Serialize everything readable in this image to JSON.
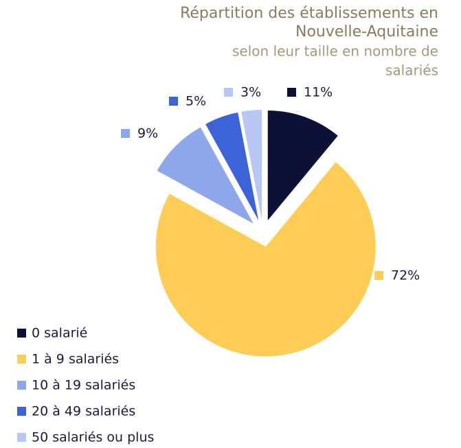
{
  "chart_data": {
    "type": "pie",
    "title": [
      "Répartition des établissements en",
      "Nouvelle-Aquitaine"
    ],
    "subtitle": [
      "selon leur taille en nombre de",
      "salariés"
    ],
    "categories": [
      "0 salarié",
      "1 à 9 salariés",
      "10 à 19 salariés",
      "20 à 49 salariés",
      "50 salariés ou plus"
    ],
    "values": [
      11,
      72,
      9,
      5,
      3
    ],
    "value_labels": [
      "11%",
      "72%",
      "9%",
      "5%",
      "3%"
    ],
    "colors": [
      "#0d1135",
      "#ffcc55",
      "#8ea7ea",
      "#3d63d9",
      "#b8c7f4"
    ]
  }
}
